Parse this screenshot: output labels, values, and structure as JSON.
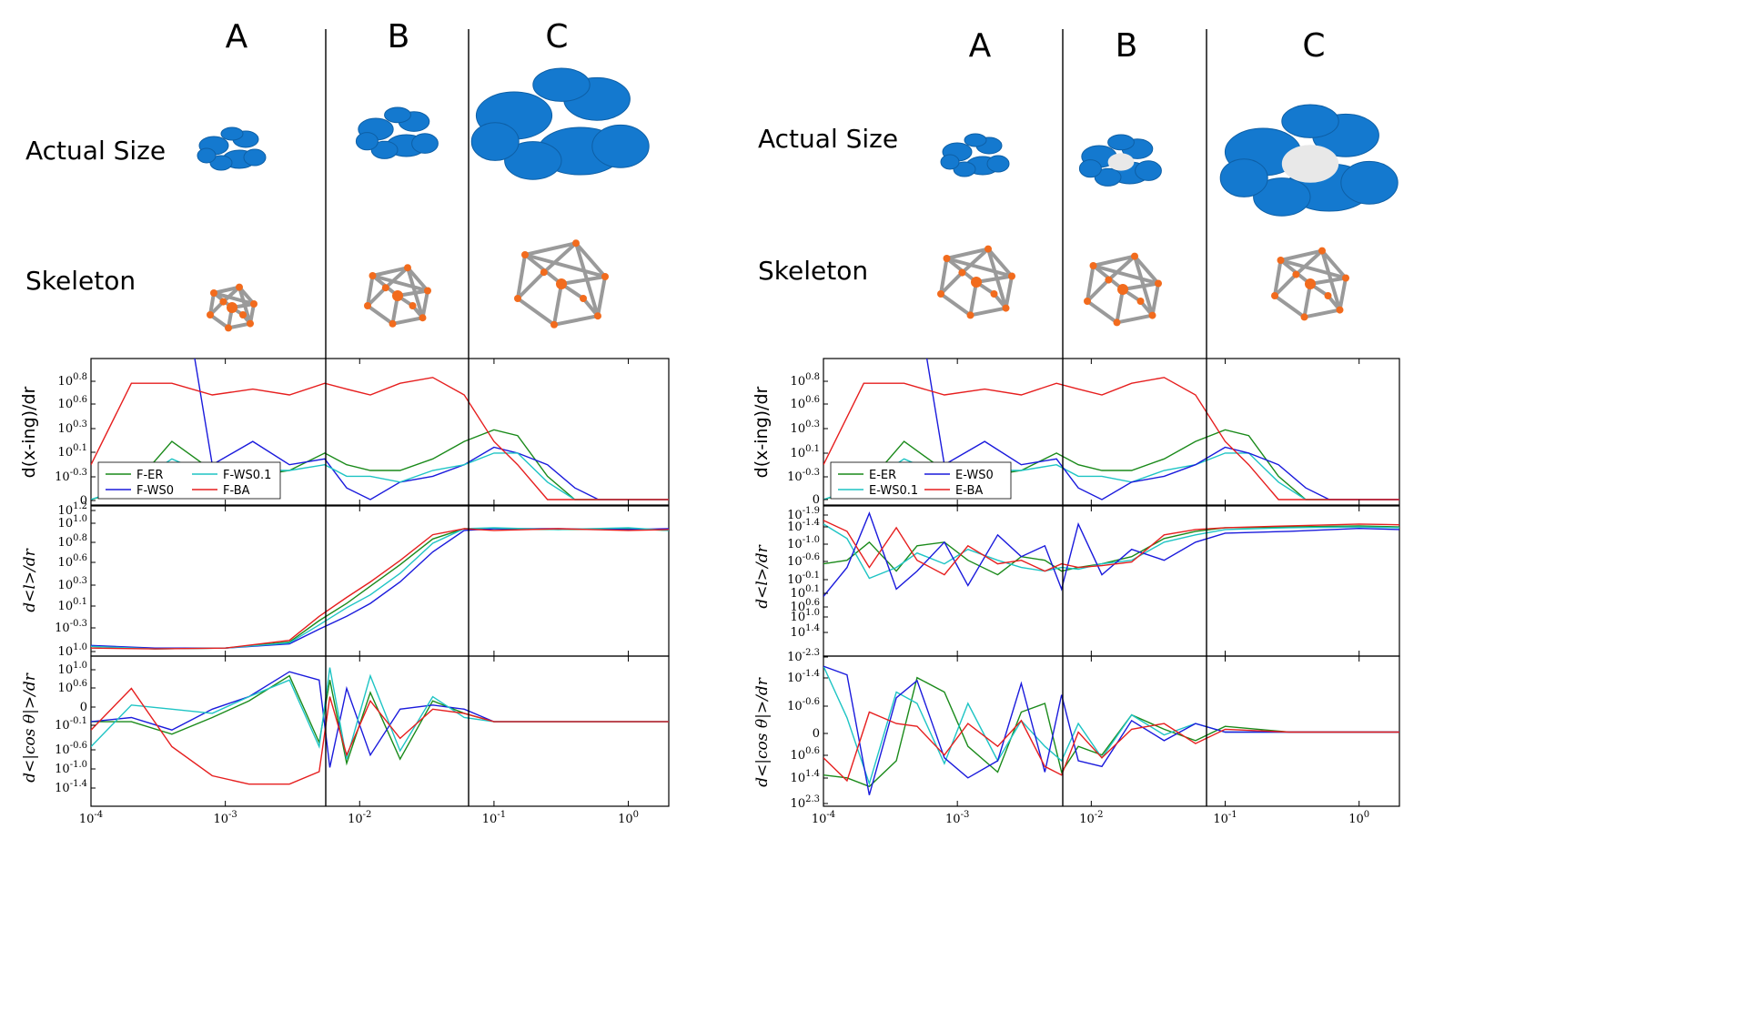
{
  "panels": [
    {
      "id": "left",
      "columns": [
        "A",
        "B",
        "C"
      ],
      "rows": [
        "Actual Size",
        "Skeleton"
      ]
    },
    {
      "id": "right",
      "columns": [
        "A",
        "B",
        "C"
      ],
      "rows": [
        "Actual Size",
        "Skeleton"
      ]
    }
  ],
  "colors": {
    "ER": "#1a8a1a",
    "WS0": "#1a1adc",
    "WS01": "#1ec4c4",
    "BA": "#e61e1e",
    "node_blob": "#1479cf",
    "skeleton_node": "#f26b1d",
    "skeleton_edge": "#9a9a9a"
  },
  "chart_data": [
    {
      "type": "line",
      "title": "",
      "xlabel": "",
      "ylabel": "d(x-ing)/dr",
      "xscale": "log",
      "xlim": [
        0.0001,
        2
      ],
      "x_tick_labels": [
        "10^-4",
        "10^-3",
        "10^-2",
        "10^-1",
        "10^0"
      ],
      "y_tick_labels": [
        "0",
        "10^-0.3",
        "10^0.1",
        "10^0.3",
        "10^0.6",
        "10^0.8"
      ],
      "legend_placement": "lower-left",
      "x": [
        0.0001,
        0.0002,
        0.0004,
        0.0008,
        0.0016,
        0.003,
        0.0055,
        0.008,
        0.012,
        0.02,
        0.035,
        0.06,
        0.1,
        0.15,
        0.25,
        0.4,
        0.6,
        1.0,
        2.0
      ],
      "series": [
        {
          "name": "F-ER",
          "color_key": "ER",
          "values": [
            0.0,
            0.1,
            0.5,
            0.25,
            0.2,
            0.25,
            0.4,
            0.3,
            0.25,
            0.25,
            0.35,
            0.5,
            0.6,
            0.55,
            0.2,
            0.0,
            0.0,
            0.0,
            0.0
          ]
        },
        {
          "name": "F-WS0",
          "color_key": "WS0",
          "values": [
            3.5,
            3.0,
            2.4,
            0.3,
            0.5,
            0.3,
            0.35,
            0.1,
            0.0,
            0.15,
            0.2,
            0.3,
            0.45,
            0.4,
            0.3,
            0.1,
            0.0,
            0.0,
            0.0
          ]
        },
        {
          "name": "F-WS0.1",
          "color_key": "WS01",
          "values": [
            0.0,
            0.12,
            0.35,
            0.2,
            0.25,
            0.25,
            0.3,
            0.2,
            0.2,
            0.15,
            0.25,
            0.3,
            0.4,
            0.4,
            0.15,
            0.0,
            0.0,
            0.0,
            0.0
          ]
        },
        {
          "name": "F-BA",
          "color_key": "BA",
          "values": [
            0.3,
            1.0,
            1.0,
            0.9,
            0.95,
            0.9,
            1.0,
            0.95,
            0.9,
            1.0,
            1.05,
            0.9,
            0.5,
            0.3,
            0.0,
            0.0,
            0.0,
            0.0,
            0.0
          ]
        }
      ]
    },
    {
      "type": "line",
      "title": "",
      "xlabel": "",
      "ylabel": "d<l>/dr",
      "xscale": "log",
      "xlim": [
        0.0001,
        2
      ],
      "y_tick_labels": [
        "10^1.0",
        "10^-0.3",
        "10^0.1",
        "10^0.3",
        "10^0.6",
        "10^0.8",
        "10^1.0",
        "10^1.2",
        "10^1.4"
      ],
      "x": [
        0.0001,
        0.0003,
        0.001,
        0.003,
        0.005,
        0.008,
        0.012,
        0.02,
        0.035,
        0.06,
        0.1,
        0.3,
        1.0,
        2.0
      ],
      "series": [
        {
          "name": "F-ER",
          "color_key": "ER",
          "values": [
            0.05,
            0.02,
            0.03,
            0.1,
            0.35,
            0.55,
            0.75,
            1.0,
            1.3,
            1.42,
            1.42,
            1.41,
            1.42,
            1.4
          ]
        },
        {
          "name": "F-WS0",
          "color_key": "WS0",
          "values": [
            0.06,
            0.03,
            0.03,
            0.08,
            0.25,
            0.4,
            0.55,
            0.8,
            1.15,
            1.4,
            1.42,
            1.42,
            1.41,
            1.42
          ]
        },
        {
          "name": "F-WS0.1",
          "color_key": "WS01",
          "values": [
            0.05,
            0.02,
            0.03,
            0.09,
            0.3,
            0.5,
            0.65,
            0.9,
            1.25,
            1.42,
            1.43,
            1.41,
            1.43,
            1.4
          ]
        },
        {
          "name": "F-BA",
          "color_key": "BA",
          "values": [
            0.03,
            0.02,
            0.03,
            0.12,
            0.4,
            0.62,
            0.8,
            1.05,
            1.35,
            1.42,
            1.4,
            1.42,
            1.4,
            1.41
          ]
        }
      ]
    },
    {
      "type": "line",
      "title": "",
      "xlabel": "",
      "ylabel": "d<|cos θ|>/dr",
      "xscale": "log",
      "xlim": [
        0.0001,
        2
      ],
      "y_tick_labels": [
        "10^-1.4",
        "10^-1.0",
        "10^-0.6",
        "10^-0.1",
        "0",
        "10^0.6",
        "10^1.0"
      ],
      "x": [
        0.0001,
        0.0002,
        0.0004,
        0.0008,
        0.0015,
        0.003,
        0.005,
        0.006,
        0.008,
        0.012,
        0.02,
        0.035,
        0.06,
        0.1,
        0.2,
        0.5,
        1.0,
        2.0
      ],
      "series": [
        {
          "name": "F-ER",
          "color_key": "ER",
          "values": [
            0.0,
            0.0,
            -0.3,
            0.1,
            0.5,
            1.1,
            -0.5,
            1.0,
            -1.0,
            0.7,
            -0.9,
            0.5,
            0.2,
            0.0,
            0.0,
            0.0,
            0.0,
            0.0
          ]
        },
        {
          "name": "F-WS0",
          "color_key": "WS0",
          "values": [
            0.0,
            0.1,
            -0.2,
            0.3,
            0.6,
            1.2,
            1.0,
            -1.1,
            0.8,
            -0.8,
            0.3,
            0.4,
            0.3,
            0.0,
            0.0,
            0.0,
            0.0,
            0.0
          ]
        },
        {
          "name": "F-WS0.1",
          "color_key": "WS01",
          "values": [
            -0.6,
            0.4,
            0.3,
            0.2,
            0.6,
            1.0,
            -0.6,
            1.3,
            -0.9,
            1.1,
            -0.7,
            0.6,
            0.1,
            0.0,
            0.0,
            0.0,
            0.0,
            0.0
          ]
        },
        {
          "name": "F-BA",
          "color_key": "BA",
          "values": [
            -0.2,
            0.8,
            -0.6,
            -1.3,
            -1.5,
            -1.5,
            -1.2,
            0.6,
            -0.8,
            0.5,
            -0.4,
            0.3,
            0.2,
            0.0,
            0.0,
            0.0,
            0.0,
            0.0
          ]
        }
      ]
    },
    {
      "type": "line",
      "title": "",
      "xlabel": "",
      "ylabel": "d(x-ing)/dr",
      "xscale": "log",
      "xlim": [
        0.0001,
        2
      ],
      "x_tick_labels": [
        "10^-4",
        "10^-3",
        "10^-2",
        "10^-1",
        "10^0"
      ],
      "y_tick_labels": [
        "0",
        "10^-0.3",
        "10^0.1",
        "10^0.3",
        "10^0.6",
        "10^0.8"
      ],
      "legend_placement": "lower-left",
      "x": [
        0.0001,
        0.0002,
        0.0004,
        0.0008,
        0.0016,
        0.003,
        0.0055,
        0.008,
        0.012,
        0.02,
        0.035,
        0.06,
        0.1,
        0.15,
        0.25,
        0.4,
        0.6,
        1.0,
        2.0
      ],
      "series": [
        {
          "name": "E-ER",
          "color_key": "ER",
          "values": [
            0.0,
            0.1,
            0.5,
            0.25,
            0.2,
            0.25,
            0.4,
            0.3,
            0.25,
            0.25,
            0.35,
            0.5,
            0.6,
            0.55,
            0.2,
            0.0,
            0.0,
            0.0,
            0.0
          ]
        },
        {
          "name": "E-WS0.1",
          "color_key": "WS01",
          "values": [
            0.0,
            0.12,
            0.35,
            0.2,
            0.25,
            0.25,
            0.3,
            0.2,
            0.2,
            0.15,
            0.25,
            0.3,
            0.4,
            0.4,
            0.15,
            0.0,
            0.0,
            0.0,
            0.0
          ]
        },
        {
          "name": "E-WS0",
          "color_key": "WS0",
          "values": [
            3.5,
            3.0,
            2.4,
            0.3,
            0.5,
            0.3,
            0.35,
            0.1,
            0.0,
            0.15,
            0.2,
            0.3,
            0.45,
            0.4,
            0.3,
            0.1,
            0.0,
            0.0,
            0.0
          ]
        },
        {
          "name": "E-BA",
          "color_key": "BA",
          "values": [
            0.3,
            1.0,
            1.0,
            0.9,
            0.95,
            0.9,
            1.0,
            0.95,
            0.9,
            1.0,
            1.05,
            0.9,
            0.5,
            0.3,
            0.0,
            0.0,
            0.0,
            0.0,
            0.0
          ]
        }
      ]
    },
    {
      "type": "line",
      "title": "",
      "xlabel": "",
      "ylabel": "d<l>/dr",
      "xscale": "log",
      "xlim": [
        0.0001,
        2
      ],
      "y_tick_labels": [
        "10^1.4",
        "10^1.0",
        "10^0.6",
        "10^0.1",
        "10^-0.1",
        "10^-0.6",
        "10^-1.0",
        "10^-1.4",
        "10^-1.9"
      ],
      "x": [
        0.0001,
        0.00015,
        0.00022,
        0.00035,
        0.0005,
        0.0008,
        0.0012,
        0.002,
        0.003,
        0.0045,
        0.006,
        0.008,
        0.012,
        0.02,
        0.035,
        0.06,
        0.1,
        0.3,
        1.0,
        2.0
      ],
      "series": [
        {
          "name": "E-ER",
          "color_key": "ER",
          "values": [
            0.4,
            0.5,
            1.0,
            0.2,
            0.9,
            1.0,
            0.5,
            0.1,
            0.6,
            0.5,
            0.2,
            0.3,
            0.4,
            0.6,
            1.1,
            1.3,
            1.4,
            1.42,
            1.45,
            1.42
          ]
        },
        {
          "name": "E-WS0.1",
          "color_key": "WS01",
          "values": [
            1.5,
            1.1,
            0.0,
            0.3,
            0.7,
            0.4,
            0.8,
            0.5,
            0.3,
            0.2,
            0.3,
            0.25,
            0.4,
            0.5,
            1.0,
            1.2,
            1.35,
            1.4,
            1.42,
            1.4
          ]
        },
        {
          "name": "E-WS0",
          "color_key": "WS0",
          "values": [
            -0.5,
            0.3,
            1.8,
            -0.3,
            0.2,
            1.0,
            -0.2,
            1.2,
            0.6,
            0.9,
            -0.3,
            1.5,
            0.1,
            0.8,
            0.5,
            1.0,
            1.25,
            1.3,
            1.38,
            1.35
          ]
        },
        {
          "name": "E-BA",
          "color_key": "BA",
          "values": [
            1.6,
            1.3,
            0.3,
            1.4,
            0.5,
            0.1,
            0.9,
            0.4,
            0.5,
            0.2,
            0.4,
            0.3,
            0.35,
            0.45,
            1.2,
            1.35,
            1.4,
            1.45,
            1.5,
            1.48
          ]
        }
      ]
    },
    {
      "type": "line",
      "title": "",
      "xlabel": "",
      "ylabel": "d<|cos θ|>/dr",
      "xscale": "log",
      "xlim": [
        0.0001,
        2
      ],
      "y_tick_labels": [
        "10^2.3",
        "10^1.4",
        "10^0.6",
        "0",
        "10^-0.6",
        "10^-1.4",
        "10^-2.3"
      ],
      "x": [
        0.0001,
        0.00015,
        0.00022,
        0.00035,
        0.0005,
        0.0008,
        0.0012,
        0.002,
        0.003,
        0.0045,
        0.006,
        0.008,
        0.012,
        0.02,
        0.035,
        0.06,
        0.1,
        0.3,
        1.0,
        2.0
      ],
      "series": [
        {
          "name": "E-ER",
          "color_key": "ER",
          "values": [
            -1.5,
            -1.6,
            -1.9,
            -1.0,
            1.9,
            1.4,
            -0.5,
            -1.4,
            0.7,
            1.0,
            -1.4,
            -0.5,
            -0.8,
            0.6,
            0.1,
            -0.3,
            0.2,
            0.0,
            0.0,
            0.0
          ]
        },
        {
          "name": "E-WS0.1",
          "color_key": "WS01",
          "values": [
            2.3,
            0.5,
            -1.8,
            1.4,
            1.0,
            -1.1,
            1.0,
            -1.0,
            0.4,
            -0.5,
            -1.0,
            0.3,
            -0.9,
            0.6,
            -0.1,
            0.3,
            0.0,
            0.0,
            0.0,
            0.0
          ]
        },
        {
          "name": "E-WS0",
          "color_key": "WS0",
          "values": [
            2.3,
            2.0,
            -2.2,
            1.2,
            1.8,
            -0.9,
            -1.6,
            -1.0,
            1.7,
            -1.4,
            1.3,
            -1.0,
            -1.2,
            0.4,
            -0.3,
            0.3,
            0.0,
            0.0,
            0.0,
            0.0
          ]
        },
        {
          "name": "E-BA",
          "color_key": "BA",
          "values": [
            -0.9,
            -1.7,
            0.7,
            0.3,
            0.2,
            -0.8,
            0.3,
            -0.5,
            0.4,
            -1.2,
            -1.5,
            0.0,
            -0.9,
            0.1,
            0.3,
            -0.4,
            0.1,
            0.0,
            0.0,
            0.0
          ]
        }
      ]
    }
  ]
}
